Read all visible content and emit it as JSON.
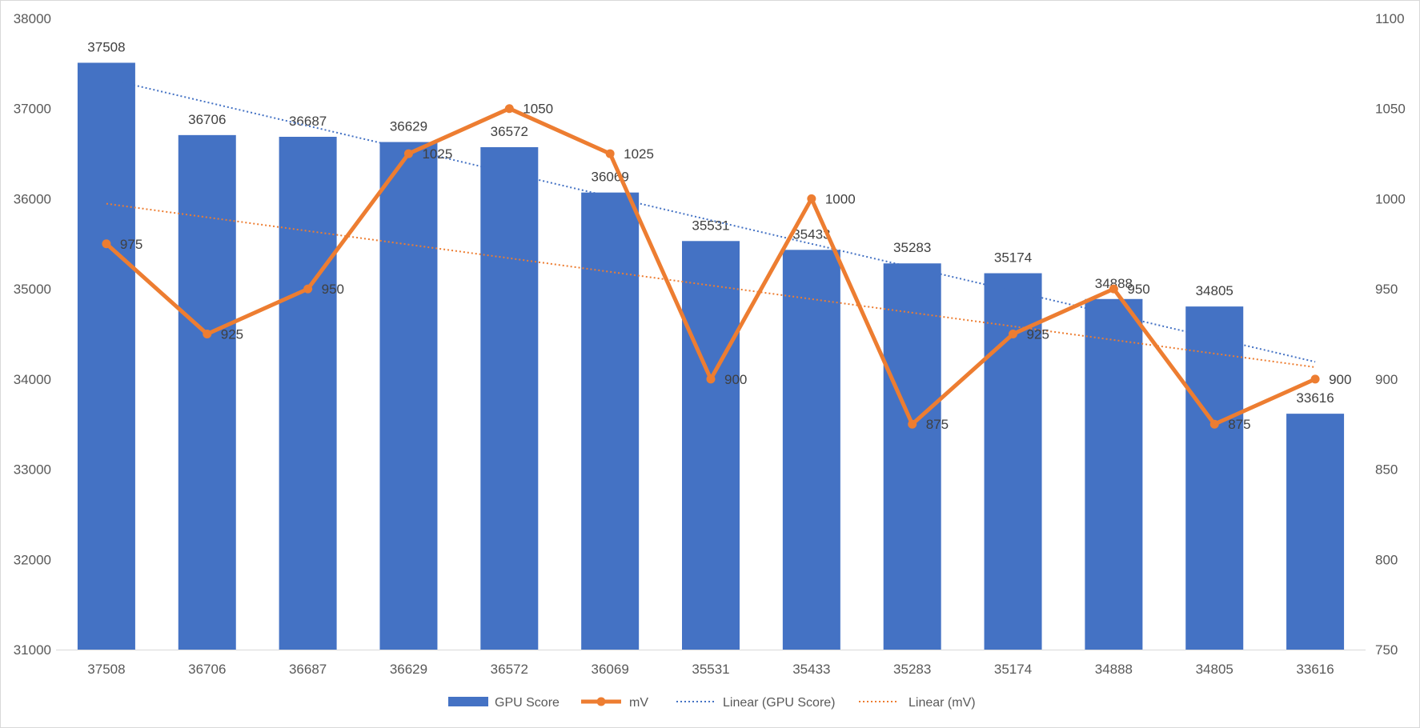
{
  "chart_data": {
    "type": "bar",
    "categories": [
      "37508",
      "36706",
      "36687",
      "36629",
      "36572",
      "36069",
      "35531",
      "35433",
      "35283",
      "35174",
      "34888",
      "34805",
      "33616"
    ],
    "series": [
      {
        "name": "GPU Score",
        "type": "bar",
        "axis": "left",
        "color": "#4472C4",
        "values": [
          37508,
          36706,
          36687,
          36629,
          36572,
          36069,
          35531,
          35433,
          35283,
          35174,
          34888,
          34805,
          33616
        ]
      },
      {
        "name": "mV",
        "type": "line",
        "axis": "right",
        "color": "#ED7D31",
        "values": [
          975,
          925,
          950,
          1025,
          1050,
          1025,
          900,
          1000,
          875,
          925,
          950,
          875,
          900
        ]
      }
    ],
    "trendlines": [
      {
        "name": "Linear (GPU Score)",
        "of": "GPU Score",
        "color": "#4472C4",
        "style": "dotted"
      },
      {
        "name": "Linear (mV)",
        "of": "mV",
        "color": "#ED7D31",
        "style": "dotted"
      }
    ],
    "y_left": {
      "min": 31000,
      "max": 38000,
      "ticks": [
        "31000",
        "32000",
        "33000",
        "34000",
        "35000",
        "36000",
        "37000",
        "38000"
      ]
    },
    "y_right": {
      "min": 750,
      "max": 1100,
      "ticks": [
        "750",
        "800",
        "850",
        "900",
        "950",
        "1000",
        "1050",
        "1100"
      ]
    },
    "grid": false,
    "legend_position": "bottom",
    "data_labels": true
  }
}
